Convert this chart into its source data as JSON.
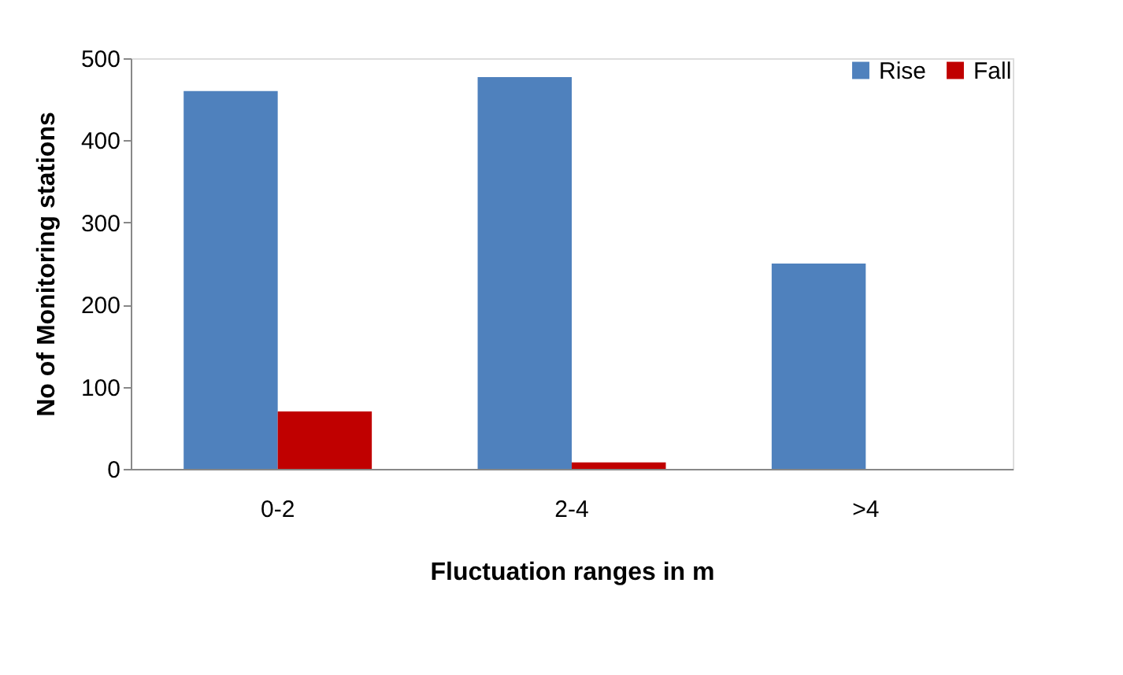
{
  "chart_data": {
    "type": "bar",
    "xlabel": "Fluctuation ranges in m",
    "ylabel": "No of Monitoring stations",
    "categories": [
      "0-2",
      "2-4",
      ">4"
    ],
    "series": [
      {
        "name": "Rise",
        "color": "#4f81bd",
        "values": [
          460,
          477,
          250
        ]
      },
      {
        "name": "Fall",
        "color": "#c00000",
        "values": [
          70,
          8,
          0
        ]
      }
    ],
    "ylim": [
      0,
      500
    ],
    "yticks": [
      0,
      100,
      200,
      300,
      400,
      500
    ],
    "grid": false,
    "legend": "top right"
  }
}
